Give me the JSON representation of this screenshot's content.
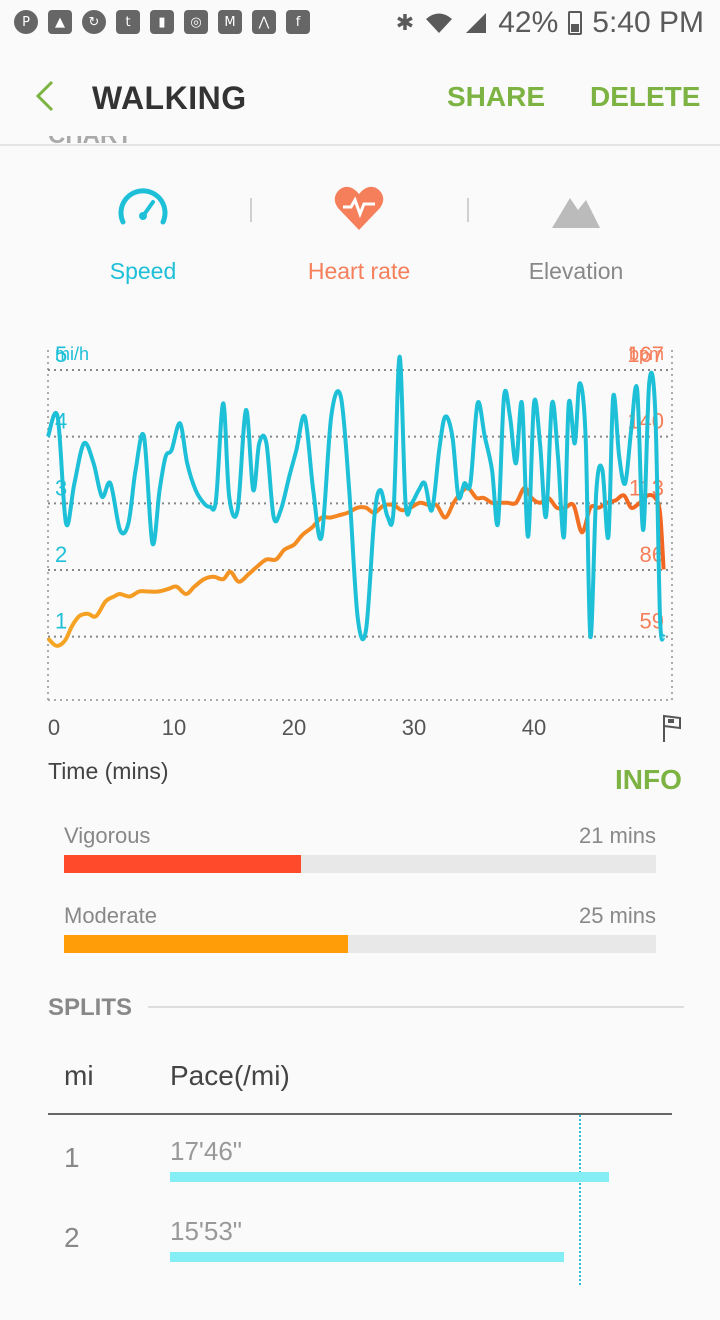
{
  "status_bar": {
    "battery": "42%",
    "time": "5:40 PM",
    "notification_icons": [
      "pinterest-icon",
      "gallery-icon",
      "sync-icon",
      "twitter-icon",
      "card-icon",
      "instagram-icon",
      "gmail-icon",
      "strava-icon",
      "facebook-icon"
    ]
  },
  "header": {
    "title": "WALKING",
    "share_label": "SHARE",
    "delete_label": "DELETE",
    "section_label": "CHART"
  },
  "tabs": [
    {
      "label": "Speed",
      "icon": "speedometer-icon",
      "color": "#1ec0d8"
    },
    {
      "label": "Heart rate",
      "icon": "heart-rate-icon",
      "color": "#f57f5b"
    },
    {
      "label": "Elevation",
      "icon": "mountain-icon",
      "color": "#888888"
    }
  ],
  "chart_data": {
    "type": "line",
    "left_unit": "mi/h",
    "right_unit": "bpm",
    "xlabel": "Time (mins)",
    "x_ticks": [
      "0",
      "10",
      "20",
      "30",
      "40"
    ],
    "y_left_ticks": [
      "1",
      "2",
      "3",
      "4",
      "5"
    ],
    "y_right_ticks": [
      "59",
      "86",
      "113",
      "140",
      "167"
    ],
    "xlim": [
      0,
      52
    ],
    "ylim_left": [
      0.05,
      5.3
    ],
    "ylim_right": [
      38,
      180
    ],
    "series": [
      {
        "axis": "left",
        "color": "#1ec0d8",
        "x": [
          0,
          0.8,
          1.5,
          2.2,
          3,
          3.8,
          4.5,
          5.2,
          6,
          6.7,
          7.3,
          8,
          8.7,
          9.3,
          9.8,
          10.3,
          11,
          11.6,
          12.3,
          13,
          13.5,
          14,
          14.6,
          15.1,
          15.8,
          16.5,
          17.1,
          17.6,
          18.2,
          18.8,
          19.4,
          20.1,
          20.7,
          21.4,
          22.1,
          22.8,
          23.6,
          24.4,
          25.1,
          25.8,
          26.5,
          27.2,
          27.7,
          28.3,
          28.8,
          29.3,
          29.8,
          30.3,
          30.9,
          31.4,
          32,
          32.6,
          33.1,
          33.7,
          34.2,
          34.7,
          35.2,
          35.8,
          36.4,
          37,
          37.5,
          38,
          38.5,
          39,
          39.5,
          40,
          40.5,
          41,
          41.5,
          42,
          42.5,
          43,
          43.4,
          43.9,
          44.3,
          44.8,
          45.2,
          45.7,
          46.2,
          46.7,
          47.1,
          47.6,
          48.1,
          48.6,
          49.1,
          49.6,
          50.1,
          50.6,
          51,
          51.3
        ],
        "values": [
          4.0,
          4.3,
          2.7,
          3.3,
          3.9,
          3.6,
          3.1,
          3.3,
          2.6,
          2.7,
          3.5,
          4.0,
          2.4,
          3.2,
          3.7,
          3.8,
          4.2,
          3.6,
          3.2,
          3.0,
          2.95,
          3.05,
          4.5,
          3.1,
          2.9,
          4.4,
          3.2,
          3.9,
          3.9,
          2.8,
          2.9,
          3.4,
          3.8,
          4.3,
          3.2,
          2.5,
          4.3,
          4.6,
          3.2,
          1.3,
          1.1,
          2.8,
          3.2,
          2.8,
          2.9,
          5.2,
          3.0,
          3.0,
          3.2,
          3.3,
          2.9,
          3.8,
          4.3,
          4.0,
          3.1,
          3.3,
          3.3,
          4.5,
          4.0,
          3.5,
          2.7,
          4.6,
          4.3,
          3.6,
          4.5,
          2.5,
          4.5,
          3.9,
          2.8,
          4.5,
          3.7,
          2.5,
          4.5,
          3.9,
          4.8,
          4.0,
          1.0,
          3.2,
          3.5,
          2.5,
          4.6,
          3.7,
          3.3,
          4.1,
          4.7,
          2.6,
          4.8,
          4.4,
          1.3,
          1.0
        ],
        "cutoff_note_removed": true
      },
      {
        "axis": "right",
        "color": "#f5a623",
        "color_end": "#f26522",
        "x": [
          0,
          0.7,
          1.4,
          2,
          2.6,
          3.3,
          4,
          4.8,
          5.5,
          6,
          6.8,
          7.6,
          8.4,
          9.2,
          10,
          10.7,
          11.5,
          12.2,
          13,
          13.8,
          14.6,
          15.2,
          15.9,
          16.7,
          17.4,
          18.2,
          19,
          19.7,
          20.5,
          21.2,
          22,
          22.8,
          23.5,
          24.3,
          25,
          25.8,
          26.5,
          27.2,
          28,
          28.8,
          29.5,
          30.2,
          31,
          31.8,
          32.4,
          33.1,
          33.8,
          34.4,
          35,
          35.7,
          36.3,
          37,
          37.7,
          38.3,
          39,
          39.7,
          40.3,
          41,
          41.7,
          42.4,
          43.1,
          43.8,
          44.5,
          45.2,
          45.9,
          46.6,
          47.3,
          48,
          48.6,
          49.3,
          50,
          50.6,
          51,
          51.3
        ],
        "values": [
          63,
          60,
          62,
          68,
          72,
          73,
          72,
          78,
          80,
          81,
          80,
          82,
          82,
          82,
          83,
          84,
          81,
          84,
          87,
          88,
          87,
          90,
          86,
          89,
          92,
          95,
          95,
          99,
          101,
          105,
          108,
          112,
          112,
          113,
          114,
          116,
          116,
          114,
          117,
          117,
          115,
          116,
          118,
          117,
          117,
          112,
          118,
          122,
          124,
          120,
          120,
          118,
          118,
          118,
          118,
          124,
          120,
          118,
          120,
          116,
          116,
          117,
          106,
          116,
          116,
          118,
          119,
          121,
          116,
          118,
          121,
          120,
          114,
          91
        ]
      }
    ]
  },
  "info_label": "INFO",
  "intensity": [
    {
      "label": "Vigorous",
      "value": "21 mins",
      "fraction": 0.4,
      "color": "#ff4a2c"
    },
    {
      "label": "Moderate",
      "value": "25 mins",
      "fraction": 0.48,
      "color": "#ff9d08"
    }
  ],
  "splits": {
    "title": "SPLITS",
    "col_mi": "mi",
    "col_pace": "Pace(/mi)",
    "average_fraction": 0.81,
    "rows": [
      {
        "mi": "1",
        "pace": "17'46\"",
        "fraction": 0.87
      },
      {
        "mi": "2",
        "pace": "15'53\"",
        "fraction": 0.78
      }
    ]
  }
}
